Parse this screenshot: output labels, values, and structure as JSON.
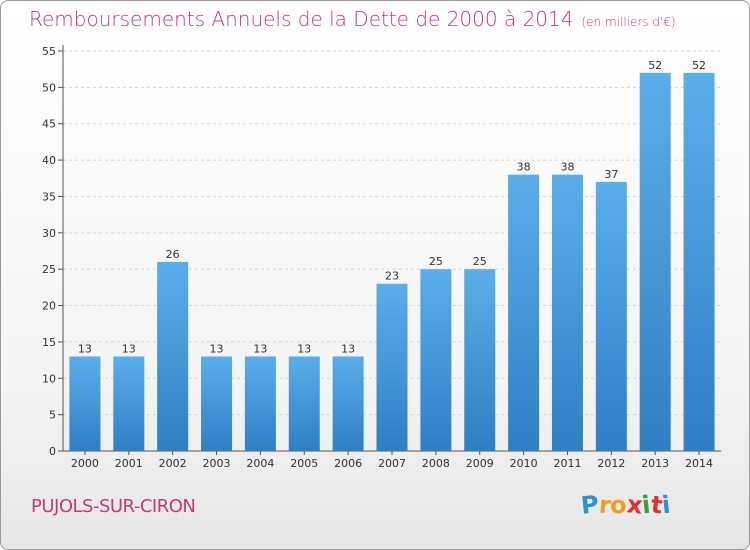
{
  "chart_data": {
    "type": "bar",
    "title": "Remboursements Annuels de la Dette de 2000 à 2014",
    "subtitle": "(en milliers d'€)",
    "categories": [
      "2000",
      "2001",
      "2002",
      "2003",
      "2004",
      "2005",
      "2006",
      "2007",
      "2008",
      "2009",
      "2010",
      "2011",
      "2012",
      "2013",
      "2014"
    ],
    "values": [
      13,
      13,
      26,
      13,
      13,
      13,
      13,
      23,
      25,
      25,
      38,
      38,
      37,
      52,
      52
    ],
    "yticks": [
      0,
      5,
      10,
      15,
      20,
      25,
      30,
      35,
      40,
      45,
      50,
      55
    ],
    "ylim": [
      0,
      55
    ],
    "xlabel": "",
    "ylabel": "",
    "grid": true
  },
  "footer": {
    "place": "PUJOLS-SUR-CIRON",
    "logo_letters": [
      "P",
      "r",
      "o",
      "x",
      "i",
      "t",
      "i"
    ],
    "logo_colors": [
      "#2f8fd6",
      "#f0a020",
      "#f0a020",
      "#e03030",
      "#3aa03a",
      "#e03030",
      "#2f8fd6"
    ]
  },
  "colors": {
    "bar_top": "#5aaeea",
    "bar_bottom": "#2f7fc4",
    "title": "#c23a7a"
  }
}
